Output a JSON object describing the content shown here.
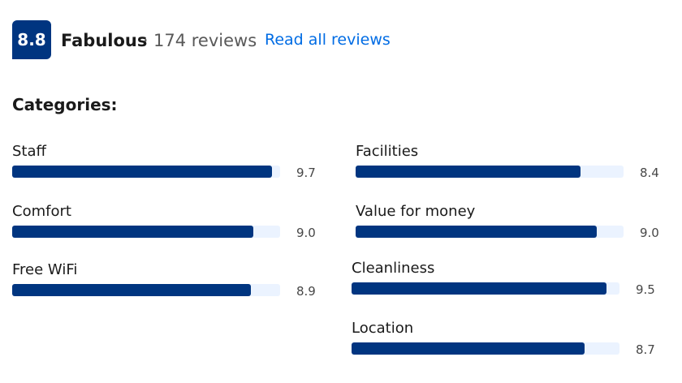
{
  "header": {
    "score": "8.8",
    "rating": "Fabulous",
    "separator": "·",
    "reviews": "174 reviews",
    "link": "Read all reviews"
  },
  "categories": {
    "title": "Categories:",
    "xlim": [
      0,
      10
    ],
    "columns": [
      {
        "items": [
          {
            "name": "Staff",
            "value": 9.7
          },
          {
            "name": "Comfort",
            "value": 9.0,
            "value_label": "9.0"
          },
          {
            "name": "Free WiFi",
            "value": 8.9
          }
        ]
      },
      {
        "items": [
          {
            "name": "Facilities",
            "value": 8.4
          },
          {
            "name": "Value for money",
            "value": 9.0,
            "value_label": "9.0"
          },
          {
            "name": "Cleanliness",
            "value": 9.5
          },
          {
            "name": "Location",
            "value": 8.7
          }
        ]
      }
    ]
  }
}
